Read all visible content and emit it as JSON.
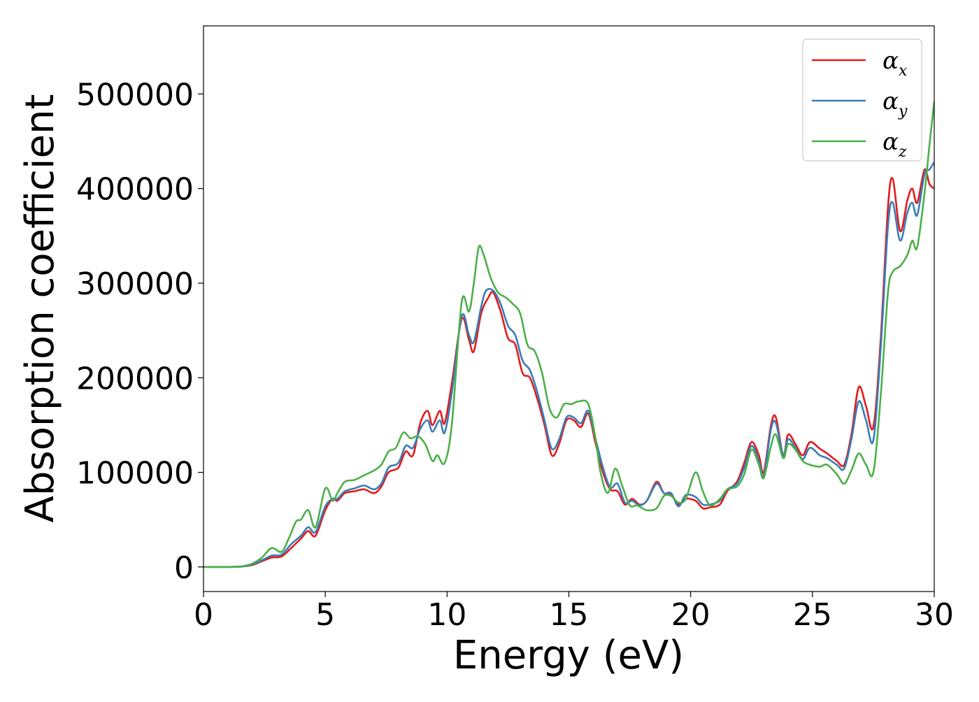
{
  "chart_data": {
    "type": "line",
    "title": "",
    "xlabel": "Energy (eV)",
    "ylabel": "Absorption coefficient",
    "xlim": [
      0,
      30
    ],
    "ylim": [
      -26000,
      572000
    ],
    "xticks": [
      0,
      5,
      10,
      15,
      20,
      25,
      30
    ],
    "yticks": [
      0,
      100000,
      200000,
      300000,
      400000,
      500000
    ],
    "grid": false,
    "legend_position": "top-right",
    "series": [
      {
        "name": "αx",
        "legend_base": "α",
        "legend_sub": "x",
        "color": "#e41a1c",
        "points": [
          [
            0,
            0
          ],
          [
            1,
            0
          ],
          [
            1.6,
            500
          ],
          [
            2,
            2000
          ],
          [
            2.4,
            6000
          ],
          [
            2.8,
            10000
          ],
          [
            3.2,
            11000
          ],
          [
            3.6,
            20000
          ],
          [
            4,
            30000
          ],
          [
            4.3,
            38000
          ],
          [
            4.6,
            33000
          ],
          [
            5,
            60000
          ],
          [
            5.3,
            72000
          ],
          [
            5.5,
            70000
          ],
          [
            5.8,
            78000
          ],
          [
            6.2,
            80000
          ],
          [
            6.6,
            82000
          ],
          [
            7,
            78000
          ],
          [
            7.3,
            85000
          ],
          [
            7.6,
            100000
          ],
          [
            8,
            105000
          ],
          [
            8.3,
            122000
          ],
          [
            8.6,
            118000
          ],
          [
            8.9,
            152000
          ],
          [
            9.2,
            165000
          ],
          [
            9.4,
            150000
          ],
          [
            9.7,
            165000
          ],
          [
            9.9,
            152000
          ],
          [
            10.2,
            195000
          ],
          [
            10.6,
            262000
          ],
          [
            10.9,
            240000
          ],
          [
            11.1,
            228000
          ],
          [
            11.4,
            268000
          ],
          [
            11.7,
            285000
          ],
          [
            11.9,
            290000
          ],
          [
            12.2,
            270000
          ],
          [
            12.5,
            242000
          ],
          [
            12.8,
            235000
          ],
          [
            13.1,
            205000
          ],
          [
            13.4,
            200000
          ],
          [
            13.7,
            178000
          ],
          [
            14,
            150000
          ],
          [
            14.3,
            118000
          ],
          [
            14.6,
            130000
          ],
          [
            14.9,
            155000
          ],
          [
            15.2,
            155000
          ],
          [
            15.5,
            148000
          ],
          [
            15.8,
            162000
          ],
          [
            16.1,
            130000
          ],
          [
            16.4,
            100000
          ],
          [
            16.7,
            82000
          ],
          [
            17,
            80000
          ],
          [
            17.3,
            66000
          ],
          [
            17.6,
            72000
          ],
          [
            17.9,
            66000
          ],
          [
            18.2,
            70000
          ],
          [
            18.6,
            90000
          ],
          [
            18.9,
            78000
          ],
          [
            19.2,
            76000
          ],
          [
            19.5,
            66000
          ],
          [
            19.8,
            72000
          ],
          [
            20.2,
            70000
          ],
          [
            20.5,
            62000
          ],
          [
            20.8,
            63000
          ],
          [
            21.2,
            66000
          ],
          [
            21.5,
            80000
          ],
          [
            21.9,
            90000
          ],
          [
            22.2,
            110000
          ],
          [
            22.5,
            132000
          ],
          [
            22.8,
            118000
          ],
          [
            23,
            100000
          ],
          [
            23.3,
            150000
          ],
          [
            23.5,
            158000
          ],
          [
            23.8,
            118000
          ],
          [
            24,
            140000
          ],
          [
            24.3,
            130000
          ],
          [
            24.6,
            118000
          ],
          [
            24.9,
            132000
          ],
          [
            25.3,
            125000
          ],
          [
            25.6,
            120000
          ],
          [
            26,
            112000
          ],
          [
            26.3,
            108000
          ],
          [
            26.6,
            140000
          ],
          [
            26.9,
            190000
          ],
          [
            27.2,
            170000
          ],
          [
            27.5,
            148000
          ],
          [
            27.8,
            240000
          ],
          [
            28.1,
            380000
          ],
          [
            28.3,
            410000
          ],
          [
            28.6,
            355000
          ],
          [
            28.9,
            388000
          ],
          [
            29.1,
            400000
          ],
          [
            29.3,
            385000
          ],
          [
            29.6,
            420000
          ],
          [
            29.8,
            405000
          ],
          [
            30,
            400000
          ]
        ]
      },
      {
        "name": "αy",
        "legend_base": "α",
        "legend_sub": "y",
        "color": "#377eb8",
        "points": [
          [
            0,
            0
          ],
          [
            1,
            0
          ],
          [
            1.6,
            500
          ],
          [
            2,
            2500
          ],
          [
            2.4,
            7000
          ],
          [
            2.8,
            12000
          ],
          [
            3.2,
            13000
          ],
          [
            3.6,
            24000
          ],
          [
            4,
            33000
          ],
          [
            4.3,
            42000
          ],
          [
            4.6,
            37000
          ],
          [
            5,
            64000
          ],
          [
            5.3,
            72000
          ],
          [
            5.5,
            72000
          ],
          [
            5.8,
            80000
          ],
          [
            6.2,
            83000
          ],
          [
            6.6,
            86000
          ],
          [
            7,
            82000
          ],
          [
            7.3,
            88000
          ],
          [
            7.6,
            105000
          ],
          [
            8,
            110000
          ],
          [
            8.3,
            128000
          ],
          [
            8.6,
            126000
          ],
          [
            8.9,
            146000
          ],
          [
            9.2,
            155000
          ],
          [
            9.4,
            143000
          ],
          [
            9.7,
            155000
          ],
          [
            9.9,
            142000
          ],
          [
            10.2,
            185000
          ],
          [
            10.6,
            265000
          ],
          [
            10.9,
            245000
          ],
          [
            11.1,
            238000
          ],
          [
            11.4,
            275000
          ],
          [
            11.6,
            292000
          ],
          [
            11.9,
            292000
          ],
          [
            12.2,
            278000
          ],
          [
            12.5,
            255000
          ],
          [
            12.8,
            245000
          ],
          [
            13.1,
            218000
          ],
          [
            13.4,
            208000
          ],
          [
            13.7,
            185000
          ],
          [
            14,
            155000
          ],
          [
            14.3,
            125000
          ],
          [
            14.6,
            135000
          ],
          [
            14.9,
            158000
          ],
          [
            15.2,
            158000
          ],
          [
            15.5,
            152000
          ],
          [
            15.8,
            165000
          ],
          [
            16.1,
            135000
          ],
          [
            16.4,
            105000
          ],
          [
            16.7,
            84000
          ],
          [
            17,
            88000
          ],
          [
            17.3,
            68000
          ],
          [
            17.6,
            70000
          ],
          [
            17.9,
            65000
          ],
          [
            18.2,
            70000
          ],
          [
            18.6,
            88000
          ],
          [
            18.9,
            78000
          ],
          [
            19.2,
            78000
          ],
          [
            19.5,
            64000
          ],
          [
            19.8,
            76000
          ],
          [
            20.2,
            74000
          ],
          [
            20.5,
            66000
          ],
          [
            20.8,
            66000
          ],
          [
            21.2,
            70000
          ],
          [
            21.5,
            82000
          ],
          [
            21.9,
            88000
          ],
          [
            22.2,
            105000
          ],
          [
            22.5,
            128000
          ],
          [
            22.8,
            112000
          ],
          [
            23,
            96000
          ],
          [
            23.3,
            146000
          ],
          [
            23.5,
            152000
          ],
          [
            23.8,
            118000
          ],
          [
            24,
            135000
          ],
          [
            24.3,
            126000
          ],
          [
            24.6,
            114000
          ],
          [
            24.9,
            126000
          ],
          [
            25.3,
            118000
          ],
          [
            25.6,
            115000
          ],
          [
            26,
            108000
          ],
          [
            26.3,
            104000
          ],
          [
            26.6,
            135000
          ],
          [
            26.9,
            175000
          ],
          [
            27.2,
            155000
          ],
          [
            27.5,
            134000
          ],
          [
            27.8,
            230000
          ],
          [
            28.1,
            360000
          ],
          [
            28.3,
            385000
          ],
          [
            28.6,
            345000
          ],
          [
            28.9,
            375000
          ],
          [
            29.1,
            385000
          ],
          [
            29.3,
            372000
          ],
          [
            29.6,
            415000
          ],
          [
            29.8,
            420000
          ],
          [
            30,
            428000
          ]
        ]
      },
      {
        "name": "αz",
        "legend_base": "α",
        "legend_sub": "z",
        "color": "#4daf4a",
        "points": [
          [
            0,
            0
          ],
          [
            1,
            0
          ],
          [
            1.6,
            800
          ],
          [
            2,
            3500
          ],
          [
            2.4,
            10000
          ],
          [
            2.8,
            20000
          ],
          [
            3.2,
            16000
          ],
          [
            3.5,
            30000
          ],
          [
            3.8,
            48000
          ],
          [
            4,
            50000
          ],
          [
            4.3,
            60000
          ],
          [
            4.6,
            42000
          ],
          [
            5,
            83000
          ],
          [
            5.3,
            70000
          ],
          [
            5.5,
            78000
          ],
          [
            5.8,
            90000
          ],
          [
            6.2,
            92000
          ],
          [
            6.6,
            97000
          ],
          [
            7,
            102000
          ],
          [
            7.3,
            108000
          ],
          [
            7.6,
            122000
          ],
          [
            7.9,
            126000
          ],
          [
            8.2,
            142000
          ],
          [
            8.5,
            136000
          ],
          [
            8.8,
            138000
          ],
          [
            9.1,
            130000
          ],
          [
            9.4,
            112000
          ],
          [
            9.6,
            118000
          ],
          [
            9.9,
            110000
          ],
          [
            10.2,
            152000
          ],
          [
            10.6,
            280000
          ],
          [
            10.9,
            270000
          ],
          [
            11.1,
            300000
          ],
          [
            11.3,
            338000
          ],
          [
            11.5,
            330000
          ],
          [
            11.8,
            305000
          ],
          [
            12.1,
            290000
          ],
          [
            12.4,
            285000
          ],
          [
            12.7,
            278000
          ],
          [
            13,
            268000
          ],
          [
            13.3,
            235000
          ],
          [
            13.6,
            228000
          ],
          [
            13.9,
            205000
          ],
          [
            14.2,
            168000
          ],
          [
            14.5,
            158000
          ],
          [
            14.8,
            172000
          ],
          [
            15.1,
            172000
          ],
          [
            15.4,
            175000
          ],
          [
            15.8,
            172000
          ],
          [
            16.1,
            135000
          ],
          [
            16.3,
            100000
          ],
          [
            16.6,
            78000
          ],
          [
            16.9,
            104000
          ],
          [
            17.2,
            85000
          ],
          [
            17.5,
            65000
          ],
          [
            17.8,
            65000
          ],
          [
            18.2,
            60000
          ],
          [
            18.6,
            62000
          ],
          [
            18.9,
            75000
          ],
          [
            19.2,
            75000
          ],
          [
            19.5,
            68000
          ],
          [
            19.8,
            72000
          ],
          [
            20.2,
            100000
          ],
          [
            20.5,
            80000
          ],
          [
            20.8,
            65000
          ],
          [
            21.2,
            72000
          ],
          [
            21.5,
            82000
          ],
          [
            21.9,
            85000
          ],
          [
            22.2,
            98000
          ],
          [
            22.5,
            124000
          ],
          [
            22.8,
            108000
          ],
          [
            23,
            94000
          ],
          [
            23.3,
            128000
          ],
          [
            23.5,
            140000
          ],
          [
            23.8,
            115000
          ],
          [
            24,
            130000
          ],
          [
            24.3,
            124000
          ],
          [
            24.6,
            112000
          ],
          [
            24.9,
            108000
          ],
          [
            25.3,
            106000
          ],
          [
            25.6,
            108000
          ],
          [
            26,
            98000
          ],
          [
            26.3,
            88000
          ],
          [
            26.6,
            102000
          ],
          [
            26.9,
            120000
          ],
          [
            27.2,
            108000
          ],
          [
            27.5,
            100000
          ],
          [
            27.8,
            180000
          ],
          [
            28.1,
            290000
          ],
          [
            28.3,
            312000
          ],
          [
            28.6,
            318000
          ],
          [
            28.9,
            330000
          ],
          [
            29.1,
            345000
          ],
          [
            29.3,
            338000
          ],
          [
            29.6,
            395000
          ],
          [
            29.8,
            445000
          ],
          [
            30,
            492000
          ]
        ]
      }
    ]
  }
}
